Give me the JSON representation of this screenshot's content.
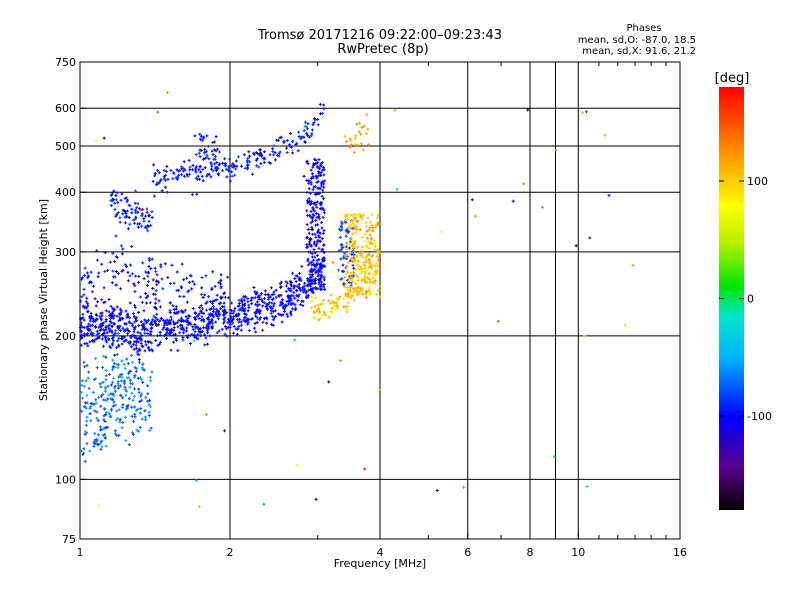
{
  "chart_data": {
    "type": "scatter",
    "title": "Tromsø 20171216 09:22:00–09:23:43",
    "subtitle": "RwPretec (8p)",
    "stats": {
      "heading": "Phases",
      "line_o": "mean, sd,O: -87.0, 18.5",
      "line_x": "mean, sd,X:  91.6, 21.2"
    },
    "xlabel": "Frequency [MHz]",
    "ylabel": "Stationary phase Virtual Height [km]",
    "x_scale": "log",
    "y_scale": "log",
    "xlim": [
      1,
      16
    ],
    "ylim": [
      75,
      750
    ],
    "x_ticks": [
      1,
      2,
      4,
      6,
      8,
      10,
      16
    ],
    "x_minor_ticks": [
      3,
      5,
      7,
      9,
      11,
      12,
      13,
      14,
      15
    ],
    "y_ticks": [
      75,
      100,
      200,
      300,
      400,
      500,
      600,
      750
    ],
    "grid": true,
    "colorbar": {
      "label": "[deg]",
      "range": [
        -180,
        180
      ],
      "ticks": [
        -100,
        0,
        100
      ],
      "tick_labels": [
        "-100",
        "0",
        "100"
      ],
      "colormap": "rainbow"
    },
    "series": [
      {
        "type": "band",
        "f": [
          1.0,
          1.3,
          1.7,
          2.0,
          2.3,
          2.6,
          2.9,
          3.1
        ],
        "h": [
          212,
          210,
          213,
          220,
          228,
          238,
          260,
          285
        ],
        "hsd": 0.05,
        "n": 850,
        "phase": [
          -110,
          -90
        ]
      },
      {
        "type": "band",
        "f": [
          1.0,
          1.2,
          1.4,
          1.6,
          1.8,
          2.0
        ],
        "h": [
          255,
          275,
          262,
          255,
          245,
          235
        ],
        "hsd": 0.07,
        "n": 170,
        "phase": [
          -110,
          -85
        ]
      },
      {
        "type": "band",
        "f": [
          1.0,
          1.2,
          1.4
        ],
        "h": [
          145,
          150,
          148
        ],
        "hsd": 0.1,
        "n": 190,
        "phase": [
          -90,
          -50
        ]
      },
      {
        "type": "band",
        "f": [
          1.0,
          1.4
        ],
        "h": [
          195,
          190
        ],
        "hsd": 0.04,
        "n": 70,
        "phase": [
          -110,
          -80
        ]
      },
      {
        "type": "band",
        "f": [
          1.4,
          1.6,
          1.8,
          2.0
        ],
        "h": [
          425,
          440,
          445,
          455
        ],
        "hsd": 0.03,
        "n": 110,
        "phase": [
          -110,
          -80
        ]
      },
      {
        "type": "band",
        "f": [
          1.7,
          1.9
        ],
        "h": [
          505,
          495
        ],
        "hsd": 0.03,
        "n": 30,
        "phase": [
          -110,
          -80
        ]
      },
      {
        "type": "band",
        "f": [
          2.0,
          2.3,
          2.6,
          2.9,
          3.1
        ],
        "h": [
          445,
          470,
          500,
          545,
          585
        ],
        "hsd": 0.03,
        "n": 110,
        "phase": [
          -110,
          -80
        ]
      },
      {
        "type": "band",
        "f": [
          1.15,
          1.3,
          1.4
        ],
        "h": [
          380,
          360,
          345
        ],
        "hsd": 0.04,
        "n": 80,
        "phase": [
          -110,
          -80
        ]
      },
      {
        "type": "band",
        "f": [
          1.0,
          1.15
        ],
        "h": [
          112,
          125
        ],
        "hsd": 0.04,
        "n": 30,
        "phase": [
          -85,
          -50
        ]
      },
      {
        "type": "band",
        "f": [
          1.1,
          1.3
        ],
        "h": [
          165,
          170
        ],
        "hsd": 0.06,
        "n": 40,
        "phase": [
          -80,
          -50
        ]
      },
      {
        "type": "cusp",
        "f": [
          2.85,
          3.1
        ],
        "h": [
          250,
          470
        ],
        "n": 230,
        "phase": [
          -115,
          -95
        ]
      },
      {
        "type": "cusp",
        "f": [
          3.3,
          3.55
        ],
        "h": [
          255,
          350
        ],
        "n": 70,
        "phase": [
          -95,
          -70
        ]
      },
      {
        "type": "band",
        "f": [
          2.9,
          3.2,
          3.5,
          3.8,
          4.0
        ],
        "h": [
          228,
          232,
          245,
          265,
          290
        ],
        "hsd": 0.04,
        "n": 120,
        "phase": [
          85,
          120
        ]
      },
      {
        "type": "cusp",
        "f": [
          3.4,
          4.0
        ],
        "h": [
          240,
          360
        ],
        "n": 220,
        "phase": [
          85,
          125
        ]
      },
      {
        "type": "band",
        "f": [
          3.4,
          3.8
        ],
        "h": [
          505,
          545
        ],
        "hsd": 0.04,
        "n": 25,
        "phase": [
          100,
          135
        ]
      },
      {
        "type": "noise",
        "f": [
          1.0,
          13.0
        ],
        "h": [
          85,
          700
        ],
        "n": 55,
        "phase": [
          -180,
          180
        ]
      }
    ]
  }
}
